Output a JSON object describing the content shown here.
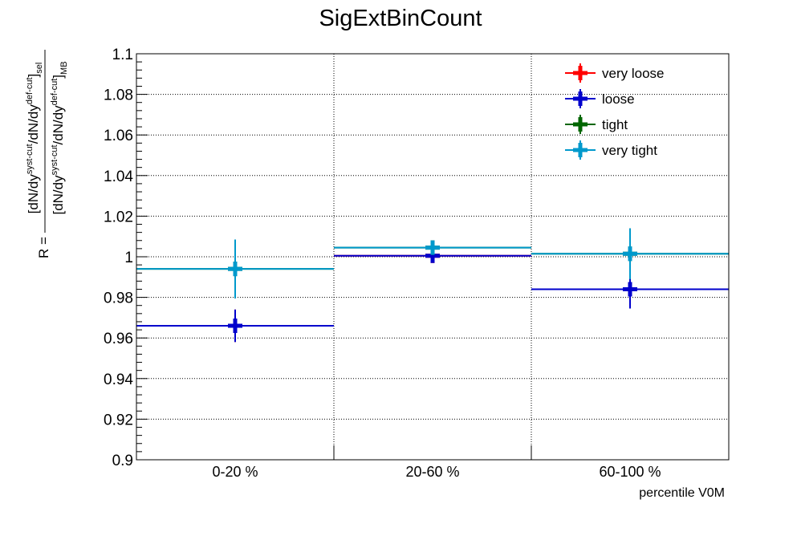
{
  "chart_data": {
    "type": "scatter",
    "title": "SigExtBinCount",
    "xlabel": "percentile V0M",
    "ylabel": {
      "prefix": "R =",
      "numerator": [
        "[dN/dy",
        "syst-cut",
        "/dN/dy",
        "def-cut",
        "]",
        "sel"
      ],
      "denominator": [
        "[dN/dy",
        "syst-cut",
        "/dN/dy",
        "def-cut",
        "]",
        "MB"
      ]
    },
    "categories": [
      "0-20 %",
      "20-60 %",
      "60-100 %"
    ],
    "ylim": [
      0.9,
      1.1
    ],
    "yticks": [
      0.9,
      0.92,
      0.94,
      0.96,
      0.98,
      1.0,
      1.02,
      1.04,
      1.06,
      1.08,
      1.1
    ],
    "ytick_labels": [
      "0.9",
      "0.92",
      "0.94",
      "0.96",
      "0.98",
      "1",
      "1.02",
      "1.04",
      "1.06",
      "1.08",
      "1.1"
    ],
    "grid": true,
    "legend_position": "top-right",
    "series": [
      {
        "name": "very loose",
        "color": "#ff0000",
        "values": [
          0.966,
          1.0005,
          0.984
        ],
        "errors": [
          0.008,
          0.0025,
          0.0095
        ]
      },
      {
        "name": "loose",
        "color": "#0000cc",
        "values": [
          0.966,
          1.0005,
          0.984
        ],
        "errors": [
          0.008,
          0.0025,
          0.0095
        ]
      },
      {
        "name": "tight",
        "color": "#006600",
        "values": [
          0.994,
          1.0045,
          1.0015
        ],
        "errors": [
          0.0145,
          0.003,
          0.0125
        ]
      },
      {
        "name": "very tight",
        "color": "#0099cc",
        "values": [
          0.994,
          1.0045,
          1.0015
        ],
        "errors": [
          0.0145,
          0.003,
          0.0125
        ]
      }
    ]
  }
}
